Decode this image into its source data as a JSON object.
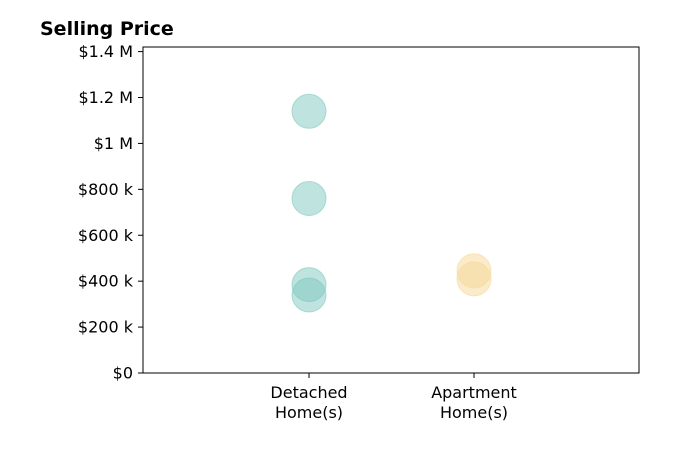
{
  "chart_data": {
    "type": "scatter",
    "title": "Selling Price",
    "xlabel": "",
    "ylabel": "",
    "categories": [
      "Detached\nHome(s)",
      "Apartment\nHome(s)"
    ],
    "ylim": [
      0,
      1420000
    ],
    "yticks": [
      0,
      200000,
      400000,
      600000,
      800000,
      1000000,
      1200000,
      1400000
    ],
    "ytick_labels": [
      "$0",
      "$200 k",
      "$400 k",
      "$600 k",
      "$800 k",
      "$1 M",
      "$1.2 M",
      "$1.4 M"
    ],
    "grid": false,
    "legend": "none",
    "series": [
      {
        "category": "Detached\nHome(s)",
        "color": "#80c8c0",
        "values": [
          1140000,
          760000,
          385000,
          340000
        ]
      },
      {
        "category": "Apartment\nHome(s)",
        "color": "#f5d898",
        "values": [
          445000,
          410000
        ]
      }
    ]
  }
}
